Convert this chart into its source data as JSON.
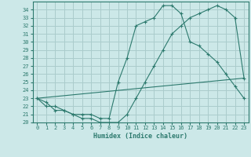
{
  "title": "",
  "xlabel": "Humidex (Indice chaleur)",
  "background_color": "#cce8e8",
  "grid_color": "#aacccc",
  "line_color": "#2d7a6e",
  "xlim": [
    -0.5,
    23.5
  ],
  "ylim": [
    20,
    35
  ],
  "xticks": [
    0,
    1,
    2,
    3,
    4,
    5,
    6,
    7,
    8,
    9,
    10,
    11,
    12,
    13,
    14,
    15,
    16,
    17,
    18,
    19,
    20,
    21,
    22,
    23
  ],
  "yticks": [
    20,
    21,
    22,
    23,
    24,
    25,
    26,
    27,
    28,
    29,
    30,
    31,
    32,
    33,
    34
  ],
  "line1_x": [
    0,
    1,
    2,
    3,
    4,
    5,
    6,
    7,
    8,
    9,
    10,
    11,
    12,
    13,
    14,
    15,
    16,
    17,
    18,
    19,
    20,
    21,
    22,
    23
  ],
  "line1_y": [
    23,
    22,
    22,
    21.5,
    21,
    21,
    21,
    20.5,
    20.5,
    25,
    28,
    32,
    32.5,
    33,
    34.5,
    34.5,
    33.5,
    30,
    29.5,
    28.5,
    27.5,
    26,
    24.5,
    23
  ],
  "line2_x": [
    0,
    1,
    2,
    3,
    4,
    5,
    6,
    7,
    8,
    9,
    10,
    11,
    12,
    13,
    14,
    15,
    16,
    17,
    18,
    19,
    20,
    21,
    22,
    23
  ],
  "line2_y": [
    23,
    22.5,
    21.5,
    21.5,
    21,
    20.5,
    20.5,
    20,
    20,
    20,
    21,
    23,
    25,
    27,
    29,
    31,
    32,
    33,
    33.5,
    34,
    34.5,
    34,
    33,
    25.5
  ],
  "line3_x": [
    0,
    23
  ],
  "line3_y": [
    23,
    25.5
  ]
}
